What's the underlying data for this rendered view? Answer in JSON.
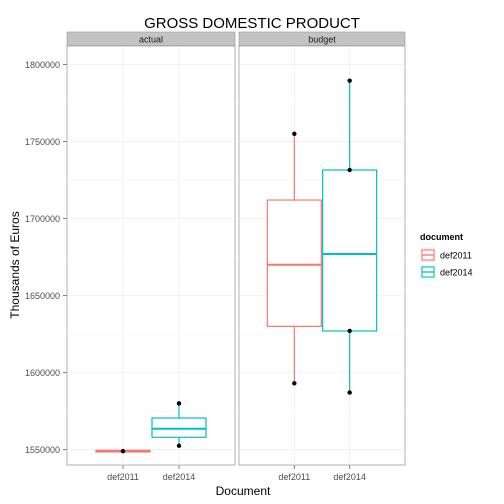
{
  "chart_data": {
    "type": "boxplot",
    "title": "GROSS DOMESTIC PRODUCT",
    "xlabel": "Document",
    "ylabel": "Thousands of Euros",
    "ylim": [
      1540000,
      1812000
    ],
    "yticks": [
      1550000,
      1600000,
      1650000,
      1700000,
      1750000,
      1800000
    ],
    "ytick_labels": [
      "1550000",
      "1600000",
      "1650000",
      "1700000",
      "1750000",
      "1800000"
    ],
    "categories": [
      "def2011",
      "def2014"
    ],
    "grid": true,
    "legend_position": "right",
    "legend": {
      "title": "document",
      "entries": [
        {
          "label": "def2011",
          "color": "#F8766D"
        },
        {
          "label": "def2014",
          "color": "#00BFC4"
        }
      ]
    },
    "facets": [
      {
        "label": "actual",
        "boxes": [
          {
            "category": "def2011",
            "color": "#F8766D",
            "min": 1548500,
            "q1": 1548500,
            "median": 1549000,
            "q3": 1549500,
            "max": 1549500,
            "points": [
              1549000
            ]
          },
          {
            "category": "def2014",
            "color": "#00BFC4",
            "min": 1552500,
            "q1": 1558000,
            "median": 1563500,
            "q3": 1570500,
            "max": 1580000,
            "points": [
              1552500,
              1580000
            ]
          }
        ]
      },
      {
        "label": "budget",
        "boxes": [
          {
            "category": "def2011",
            "color": "#F8766D",
            "min": 1593000,
            "q1": 1630000,
            "median": 1670000,
            "q3": 1712000,
            "max": 1755000,
            "points": [
              1593000,
              1755000
            ]
          },
          {
            "category": "def2014",
            "color": "#00BFC4",
            "min": 1587000,
            "q1": 1627000,
            "median": 1677000,
            "q3": 1731500,
            "max": 1789500,
            "points": [
              1587000,
              1627000,
              1731500,
              1789500
            ]
          }
        ]
      }
    ]
  }
}
